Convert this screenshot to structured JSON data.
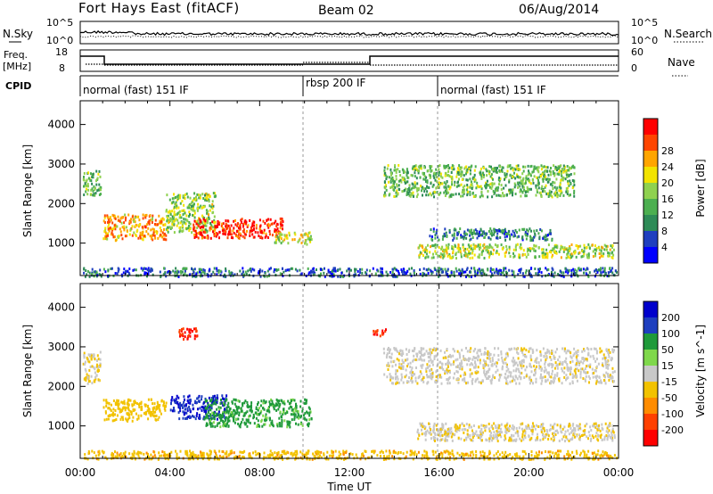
{
  "header": {
    "station": "Fort Hays East (fitACF)",
    "beam": "Beam 02",
    "date": "06/Aug/2014"
  },
  "labels": {
    "nsky": "N.Sky",
    "nsearch": "N.Search",
    "freq_line1": "Freq.",
    "freq_line2": "[MHz]",
    "nave": "Nave",
    "cpid": "CPID",
    "noise_top": "10^5",
    "noise_bottom": "10^0",
    "freq_top": "18",
    "freq_bottom": "8",
    "nave_top": "60",
    "nave_bottom": "0"
  },
  "cpid_segments": [
    {
      "label": "normal (fast) 151 IF",
      "start_hour": 0
    },
    {
      "label": "rbsp 200 IF",
      "start_hour": 10
    },
    {
      "label": "normal (fast) 151 IF",
      "start_hour": 16
    }
  ],
  "colors": {
    "power_scale": [
      "#0000ff",
      "#1f3fbf",
      "#2e8b57",
      "#4caf50",
      "#8fd14f",
      "#f2e300",
      "#ffa500",
      "#ff4500",
      "#ff0000"
    ],
    "velocity_scale": [
      "#0000cc",
      "#1e3fbf",
      "#1f9a3a",
      "#7fd84b",
      "#c8c8c8",
      "#f2c200",
      "#ff8c00",
      "#ff4000",
      "#ff0000"
    ]
  },
  "chart_data": [
    {
      "type": "heatmap",
      "name": "power",
      "xlabel": "Time UT",
      "ylabel": "Slant Range [km]",
      "xlim": [
        0,
        24
      ],
      "ylim": [
        180,
        4600
      ],
      "xticks": [
        "00:00",
        "04:00",
        "08:00",
        "12:00",
        "16:00",
        "20:00",
        "00:00"
      ],
      "yticks": [
        1000,
        2000,
        3000,
        4000
      ],
      "colorbar_label": "Power [dB]",
      "colorbar_ticks": [
        4,
        8,
        12,
        16,
        20,
        24,
        28
      ],
      "features": [
        {
          "x": [
            0.1,
            0.9
          ],
          "y": [
            2200,
            2850
          ],
          "level": 14
        },
        {
          "x": [
            1.0,
            3.8
          ],
          "y": [
            1100,
            1750
          ],
          "level": 22
        },
        {
          "x": [
            3.8,
            6.0
          ],
          "y": [
            1300,
            2300
          ],
          "level": 16
        },
        {
          "x": [
            5.0,
            9.0
          ],
          "y": [
            1150,
            1650
          ],
          "level": 27
        },
        {
          "x": [
            8.6,
            10.3
          ],
          "y": [
            1000,
            1300
          ],
          "level": 18
        },
        {
          "x": [
            13.5,
            22.0
          ],
          "y": [
            2200,
            3000
          ],
          "level": 14
        },
        {
          "x": [
            15.0,
            23.8
          ],
          "y": [
            650,
            1000
          ],
          "level": 17
        },
        {
          "x": [
            15.5,
            21.0
          ],
          "y": [
            1100,
            1400
          ],
          "level": 9
        },
        {
          "x": [
            0.1,
            23.9
          ],
          "y": [
            180,
            400
          ],
          "level": 8
        }
      ]
    },
    {
      "type": "heatmap",
      "name": "velocity",
      "xlabel": "Time UT",
      "ylabel": "Slant Range [km]",
      "xlim": [
        0,
        24
      ],
      "ylim": [
        180,
        4600
      ],
      "xticks": [
        "00:00",
        "04:00",
        "08:00",
        "12:00",
        "16:00",
        "20:00",
        "00:00"
      ],
      "yticks": [
        1000,
        2000,
        3000,
        4000
      ],
      "colorbar_label": "Velocity [m s^-1]",
      "colorbar_ticks": [
        200,
        100,
        50,
        15,
        -15,
        -50,
        -100,
        -200
      ],
      "features": [
        {
          "x": [
            0.1,
            0.9
          ],
          "y": [
            2100,
            2900
          ],
          "level": -15
        },
        {
          "x": [
            1.0,
            3.8
          ],
          "y": [
            1150,
            1700
          ],
          "level": -30
        },
        {
          "x": [
            4.0,
            6.5
          ],
          "y": [
            1200,
            1800
          ],
          "level": 200
        },
        {
          "x": [
            5.5,
            10.3
          ],
          "y": [
            1000,
            1700
          ],
          "level": 60
        },
        {
          "x": [
            13.5,
            23.8
          ],
          "y": [
            2100,
            3000
          ],
          "level": -5
        },
        {
          "x": [
            15.0,
            23.8
          ],
          "y": [
            650,
            1100
          ],
          "level": -10
        },
        {
          "x": [
            4.3,
            5.2
          ],
          "y": [
            3200,
            3500
          ],
          "level": -200
        },
        {
          "x": [
            13.0,
            13.6
          ],
          "y": [
            3300,
            3500
          ],
          "level": -200
        },
        {
          "x": [
            0.1,
            23.9
          ],
          "y": [
            180,
            400
          ],
          "level": -40
        }
      ]
    }
  ]
}
